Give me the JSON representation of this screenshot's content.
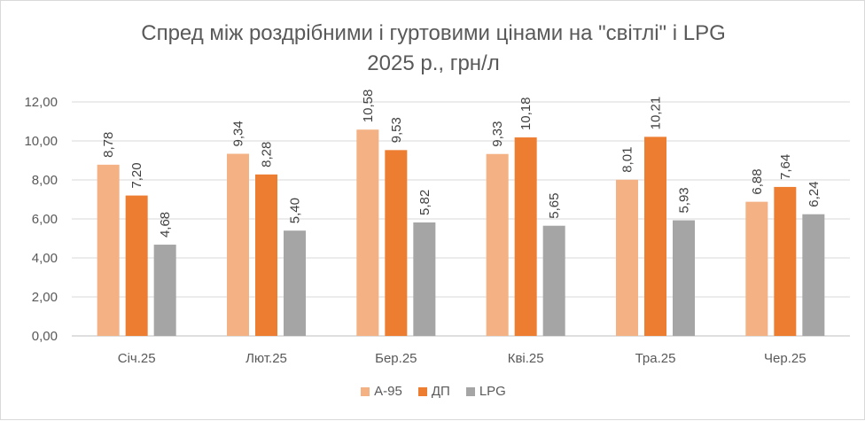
{
  "chart_data": {
    "type": "bar",
    "title": "Спред між роздрібними і гуртовими цінами на \"світлі\" і LPG",
    "subtitle": "2025 р., грн/л",
    "categories": [
      "Січ.25",
      "Лют.25",
      "Бер.25",
      "Кві.25",
      "Тра.25",
      "Чер.25"
    ],
    "series": [
      {
        "name": "А-95",
        "color": "#f4b183",
        "values": [
          8.78,
          9.34,
          10.58,
          9.33,
          8.01,
          6.88
        ],
        "labels": [
          "8,78",
          "9,34",
          "10,58",
          "9,33",
          "8,01",
          "6,88"
        ]
      },
      {
        "name": "ДП",
        "color": "#ed7d31",
        "values": [
          7.2,
          8.28,
          9.53,
          10.18,
          10.21,
          7.64
        ],
        "labels": [
          "7,20",
          "8,28",
          "9,53",
          "10,18",
          "10,21",
          "7,64"
        ]
      },
      {
        "name": "LPG",
        "color": "#a5a5a5",
        "values": [
          4.68,
          5.4,
          5.82,
          5.65,
          5.93,
          6.24
        ],
        "labels": [
          "4,68",
          "5,40",
          "5,82",
          "5,65",
          "5,93",
          "6,24"
        ]
      }
    ],
    "yticks": [
      "0,00",
      "2,00",
      "4,00",
      "6,00",
      "8,00",
      "10,00",
      "12,00"
    ],
    "ylim": [
      0,
      12
    ],
    "grid": true,
    "legend_position": "bottom"
  }
}
